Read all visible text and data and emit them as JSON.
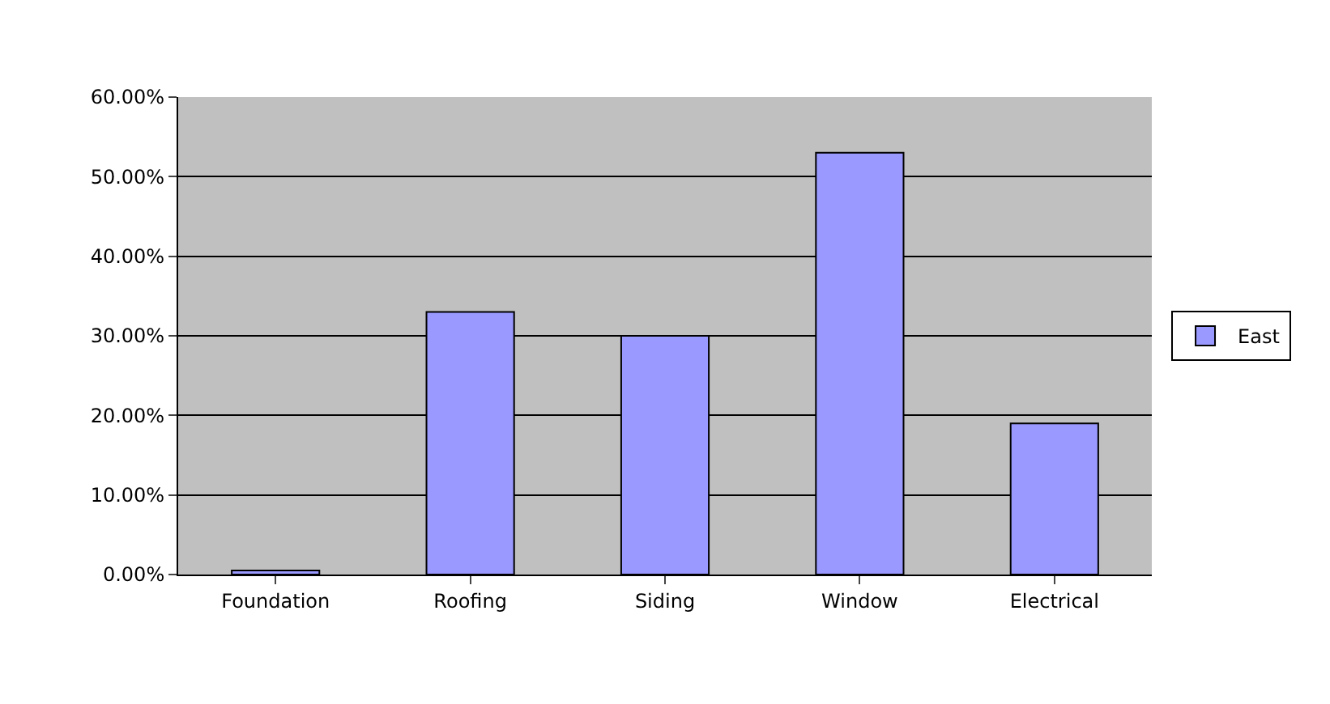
{
  "chart_data": {
    "type": "bar",
    "categories": [
      "Foundation",
      "Roofing",
      "Siding",
      "Window",
      "Electrical"
    ],
    "series": [
      {
        "name": "East",
        "color": "#9999ff",
        "values": [
          0.005,
          0.33,
          0.3,
          0.53,
          0.19
        ]
      }
    ],
    "ylim": [
      0,
      0.6
    ],
    "yticks": [
      {
        "value": 0,
        "label": "0.00%"
      },
      {
        "value": 0.1,
        "label": "10.00%"
      },
      {
        "value": 0.2,
        "label": "20.00%"
      },
      {
        "value": 0.3,
        "label": "30.00%"
      },
      {
        "value": 0.4,
        "label": "40.00%"
      },
      {
        "value": 0.5,
        "label": "50.00%"
      },
      {
        "value": 0.6,
        "label": "60.00%"
      }
    ],
    "grid": "y",
    "legend": "right"
  }
}
